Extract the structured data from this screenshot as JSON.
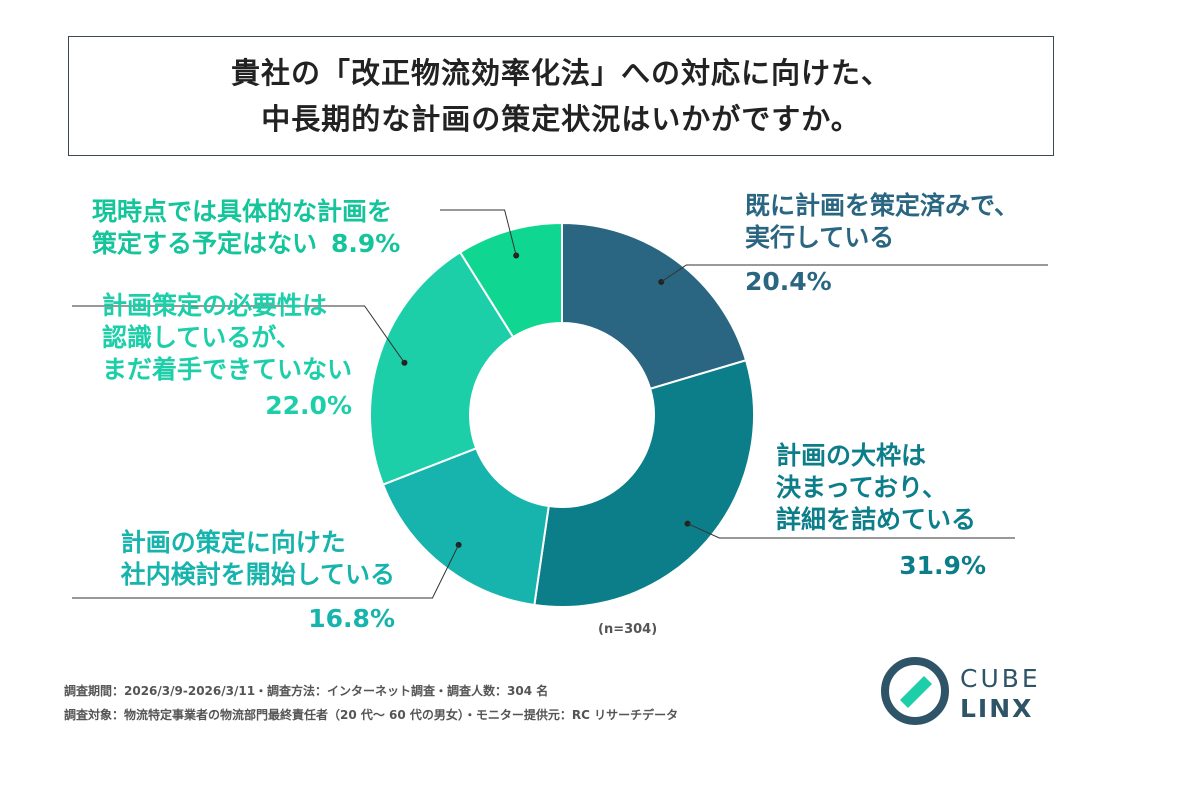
{
  "title": {
    "line1": "貴社の「改正物流効率化法」への対応に向けた、",
    "line2": "中長期的な計画の策定状況はいかがですか。"
  },
  "chart_data": {
    "type": "pie",
    "donut": true,
    "n_label": "(n=304)",
    "slices": [
      {
        "name_lines": [
          "既に計画を策定済みで、",
          "実行している"
        ],
        "value": 20.4,
        "pct_label": "20.4%",
        "color": "#2a6682",
        "label_color": "#2a6682"
      },
      {
        "name_lines": [
          "計画の大枠は",
          "決まっており、",
          "詳細を詰めている"
        ],
        "value": 31.9,
        "pct_label": "31.9%",
        "color": "#0c7e8a",
        "label_color": "#0c7e8a"
      },
      {
        "name_lines": [
          "計画の策定に向けた",
          "社内検討を開始している"
        ],
        "value": 16.8,
        "pct_label": "16.8%",
        "color": "#17b4ad",
        "label_color": "#17b4ad"
      },
      {
        "name_lines": [
          "計画策定の必要性は",
          "認識しているが、",
          "まだ着手できていない"
        ],
        "value": 22.0,
        "pct_label": "22.0%",
        "color": "#1ccfa9",
        "label_color": "#1ccfa9"
      },
      {
        "name_lines": [
          "現時点では具体的な計画を",
          "策定する予定はない"
        ],
        "value": 8.9,
        "pct_label": "8.9%",
        "color": "#0fd690",
        "label_color": "#14c49a"
      }
    ]
  },
  "footer": {
    "line1": "調査期間：2026/3/9-2026/3/11・調査方法：インターネット調査・調査人数：304 名",
    "line2": "調査対象：物流特定事業者の物流部門最終責任者（20 代〜 60 代の男女）・モニター提供元：RC リサーチデータ"
  },
  "logo": {
    "top": "CUBE",
    "bottom": "LINX",
    "color": "#2f5468"
  }
}
